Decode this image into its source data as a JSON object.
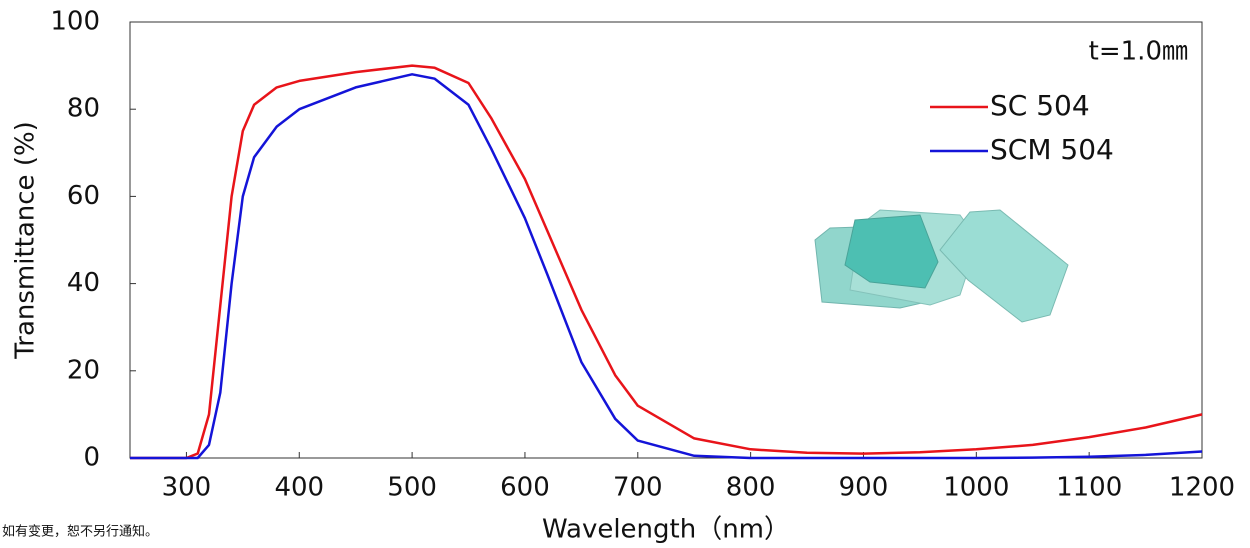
{
  "chart_data": {
    "type": "line",
    "x_label": "Wavelength（nm）",
    "y_label": "Transmittance (%)",
    "annotation": "t=1.0㎜",
    "footnote": "如有变更，恕不另行通知。",
    "x": [
      250,
      300,
      310,
      320,
      330,
      340,
      350,
      360,
      380,
      400,
      450,
      500,
      520,
      550,
      570,
      600,
      620,
      650,
      680,
      700,
      750,
      800,
      850,
      900,
      950,
      1000,
      1050,
      1100,
      1150,
      1200
    ],
    "series": [
      {
        "name": "SC 504",
        "color": "#e8141a",
        "values": [
          0,
          0,
          1,
          10,
          35,
          60,
          75,
          81,
          85,
          86.5,
          88.5,
          90,
          89.5,
          86,
          78,
          64,
          52,
          34,
          19,
          12,
          4.5,
          2,
          1.2,
          1,
          1.3,
          2,
          3,
          4.8,
          7,
          10
        ]
      },
      {
        "name": "SCM 504",
        "color": "#1414d8",
        "values": [
          0,
          0,
          0,
          3,
          15,
          40,
          60,
          69,
          76,
          80,
          85,
          88,
          87,
          81,
          71,
          55,
          42,
          22,
          9,
          4,
          0.5,
          0,
          0,
          0,
          0,
          0,
          0.1,
          0.3,
          0.7,
          1.5
        ]
      }
    ],
    "xlim": [
      250,
      1200
    ],
    "ylim": [
      0,
      100
    ],
    "xticks": [
      300,
      400,
      500,
      600,
      700,
      800,
      900,
      1000,
      1100,
      1200
    ],
    "yticks": [
      0,
      20,
      40,
      60,
      80,
      100
    ]
  }
}
